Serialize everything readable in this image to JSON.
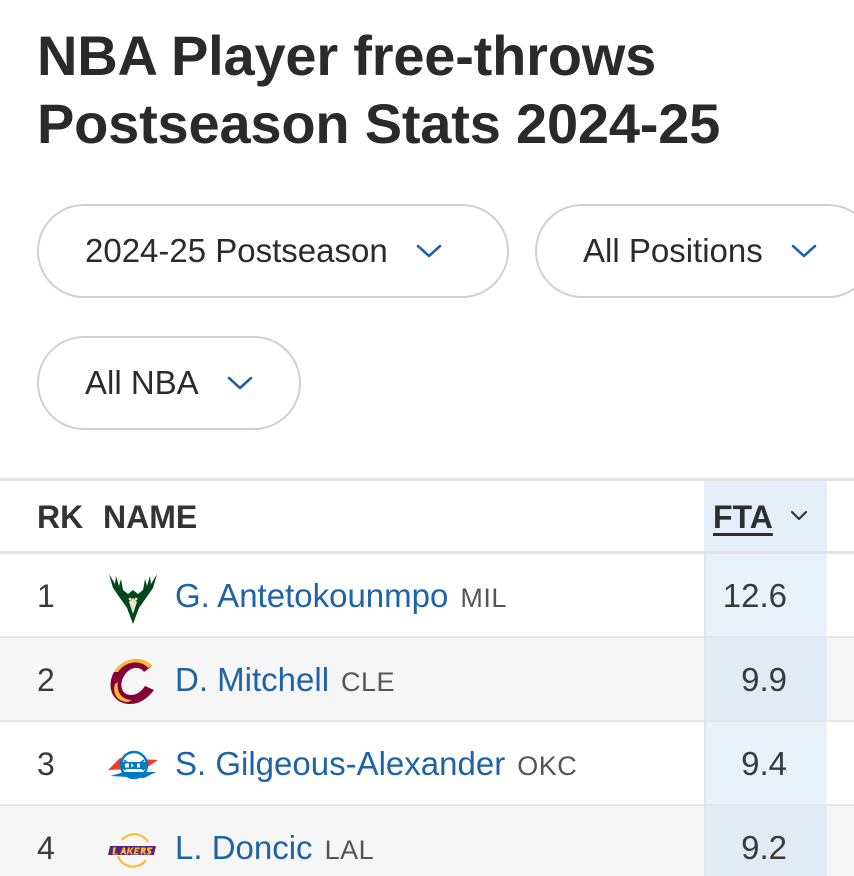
{
  "page": {
    "title": "NBA Player free-throws Postseason Stats 2024-25"
  },
  "filters": {
    "season": "2024-25 Postseason",
    "position": "All Positions",
    "league": "All NBA"
  },
  "table": {
    "headers": {
      "rank": "RK",
      "name": "NAME",
      "stat": "FTA"
    },
    "rows": [
      {
        "rank": "1",
        "name": "G. Antetokounmpo",
        "team": "MIL",
        "value": "12.6",
        "logo": "bucks-logo-icon"
      },
      {
        "rank": "2",
        "name": "D. Mitchell",
        "team": "CLE",
        "value": "9.9",
        "logo": "cavaliers-logo-icon"
      },
      {
        "rank": "3",
        "name": "S. Gilgeous-Alexander",
        "team": "OKC",
        "value": "9.4",
        "logo": "thunder-logo-icon"
      },
      {
        "rank": "4",
        "name": "L. Doncic",
        "team": "LAL",
        "value": "9.2",
        "logo": "lakers-logo-icon"
      }
    ]
  },
  "colors": {
    "link": "#1d63a8",
    "accent": "#1d63a8",
    "highlight_column": "#e4eef8",
    "bucks_green": "#00471b",
    "cavs_wine": "#860038",
    "cavs_gold": "#fdbb30",
    "thunder_blue": "#007ac1",
    "thunder_orange": "#ef3b24",
    "lakers_purple": "#552583",
    "lakers_gold": "#fdb927"
  }
}
